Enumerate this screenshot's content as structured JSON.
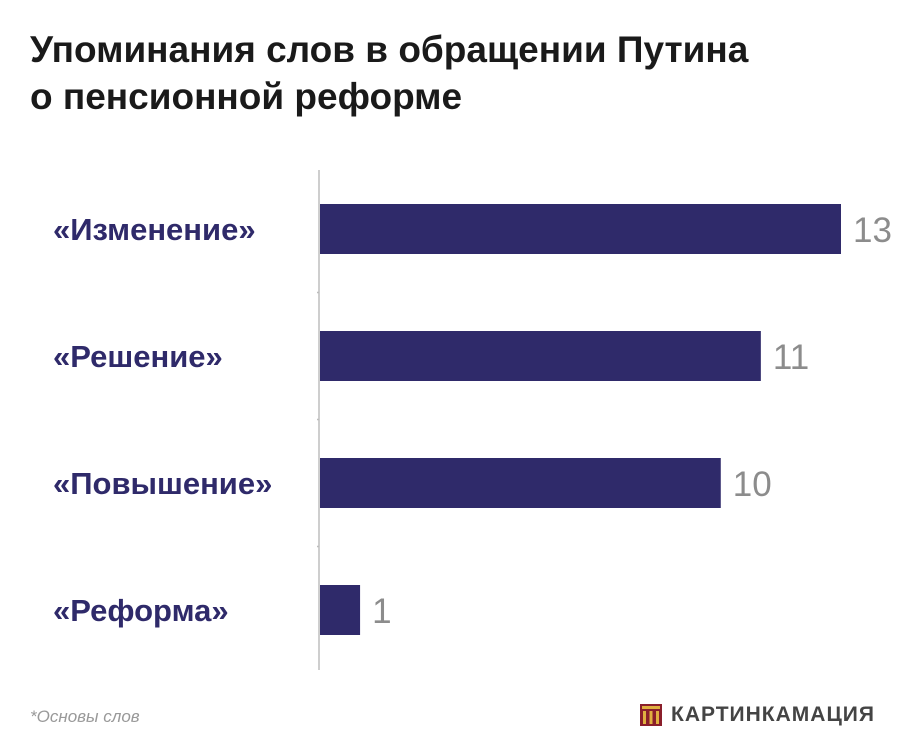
{
  "title_lines": [
    "Упоминания слов в обращении Путина",
    "о пенсионной реформе"
  ],
  "footnote": "*Основы слов",
  "brand": {
    "name": "КАРТИНКАМАЦИЯ",
    "logo_icon": "kartinkamatsiya-logo-icon"
  },
  "colors": {
    "bar": "#2f2a6a",
    "label": "#2f2a6a",
    "value": "#8c8c8c",
    "axis": "#bdbdbd"
  },
  "chart_data": {
    "type": "bar",
    "orientation": "horizontal",
    "categories": [
      "«Изменение»",
      "«Решение»",
      "«Повышение»",
      "«Реформа»"
    ],
    "values": [
      13,
      11,
      10,
      1
    ],
    "title": "Упоминания слов в обращении Путина о пенсионной реформе",
    "xlabel": "",
    "ylabel": "",
    "xlim": [
      0,
      13
    ],
    "data_labels": true,
    "grid": false,
    "legend": "none"
  }
}
